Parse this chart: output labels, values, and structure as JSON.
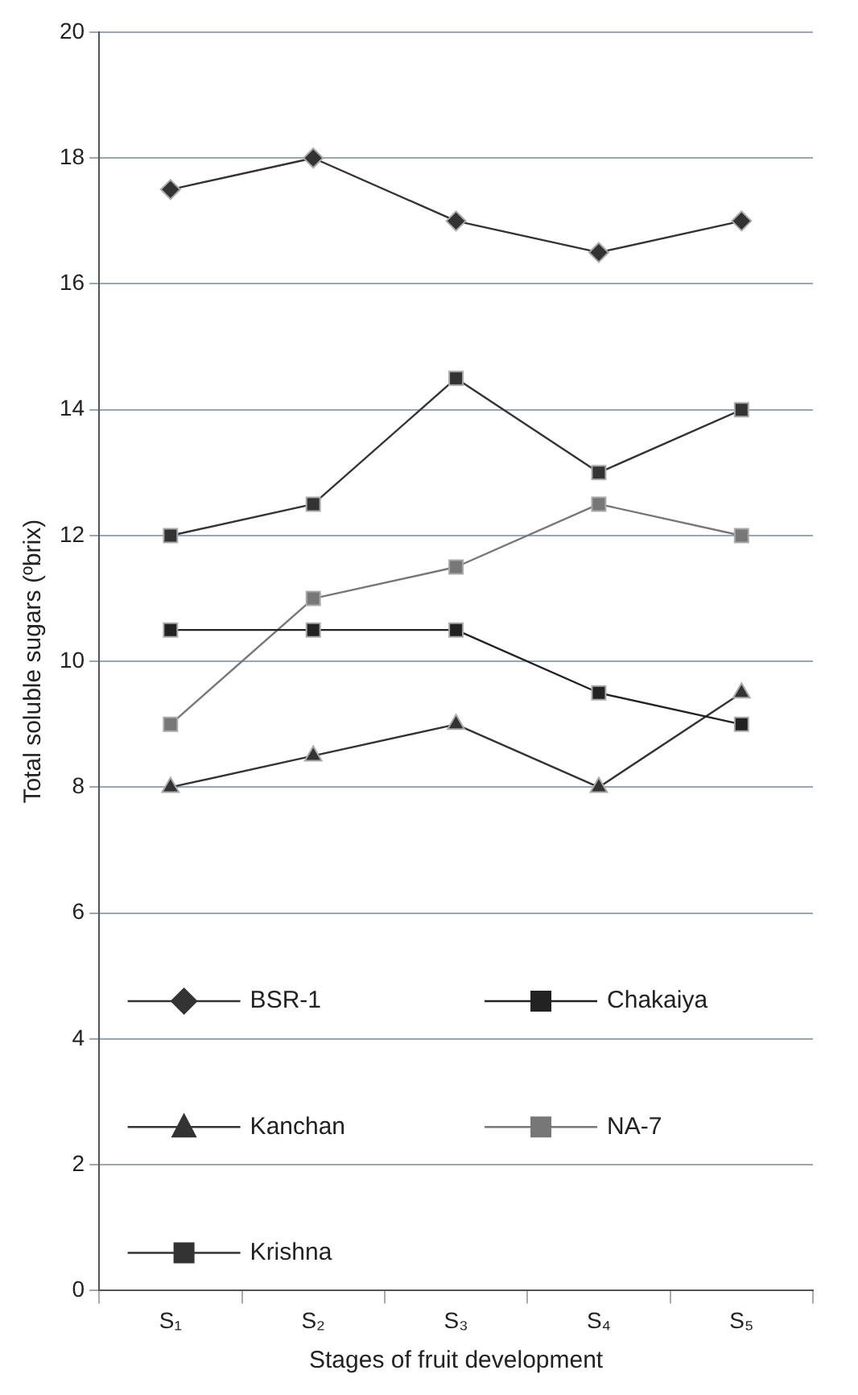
{
  "chart_data": {
    "type": "line",
    "xlabel": "Stages of fruit development",
    "ylabel": "Total soluble sugars (ºbrix)",
    "categories": [
      "S₁",
      "S₂",
      "S₃",
      "S₄",
      "S₅"
    ],
    "series": [
      {
        "name": "BSR-1",
        "color": "#333333",
        "marker": "diamond",
        "values": [
          17.5,
          18,
          17,
          16.5,
          17
        ]
      },
      {
        "name": "Chakaiya",
        "color": "#222222",
        "marker": "square",
        "values": [
          10.5,
          10.5,
          10.5,
          9.5,
          9
        ]
      },
      {
        "name": "Kanchan",
        "color": "#333333",
        "marker": "triangle",
        "values": [
          8,
          8.5,
          9,
          8,
          9.5
        ]
      },
      {
        "name": "NA-7",
        "color": "#777777",
        "marker": "square",
        "values": [
          9,
          11,
          11.5,
          12.5,
          12
        ]
      },
      {
        "name": "Krishna",
        "color": "#333333",
        "marker": "square",
        "values": [
          12,
          12.5,
          14.5,
          13,
          14
        ]
      }
    ],
    "ylim": [
      0,
      20
    ],
    "yticks": [
      0,
      2,
      4,
      6,
      8,
      10,
      12,
      14,
      16,
      18,
      20
    ],
    "grid": "y",
    "legend": "bottom left",
    "line_style": "solid"
  }
}
